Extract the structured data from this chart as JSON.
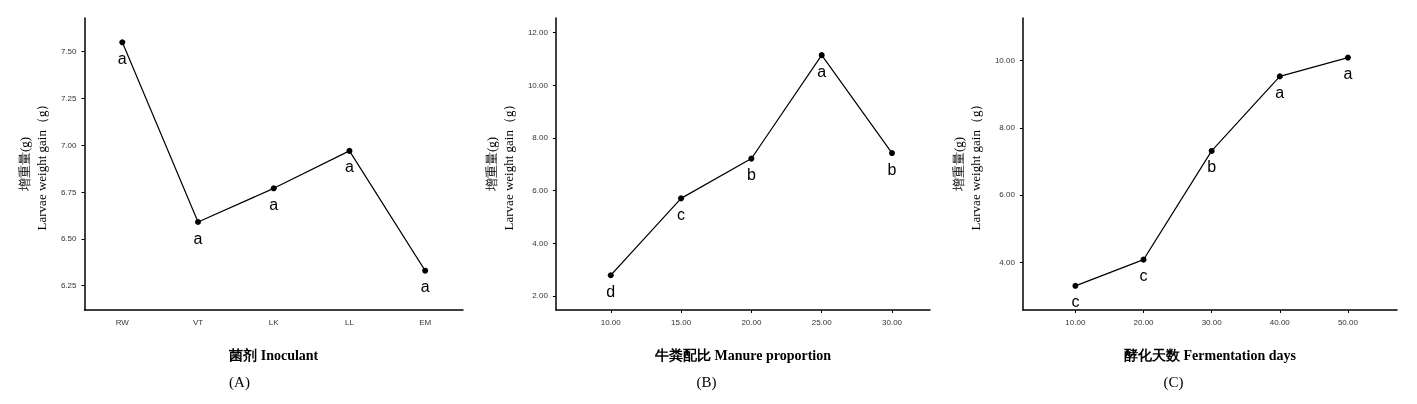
{
  "chart_data": [
    {
      "type": "line",
      "title": "(A)",
      "xlabel": "菌剂 Inoculant",
      "ylabel": "增重量(g)\nLarvae weight gain（g）",
      "categories": [
        "RW",
        "VT",
        "LK",
        "LL",
        "EM"
      ],
      "values": [
        7.55,
        6.59,
        6.77,
        6.97,
        6.33
      ],
      "color": "#000000",
      "ylim": [
        6.12,
        7.68
      ],
      "yticks": [
        {
          "value": 6.25,
          "label": "6.25"
        },
        {
          "value": 6.5,
          "label": "6.50"
        },
        {
          "value": 6.75,
          "label": "6.75"
        },
        {
          "value": 7,
          "label": "7.00"
        },
        {
          "value": 7.25,
          "label": "7.25"
        },
        {
          "value": 7.5,
          "label": "7.50"
        }
      ],
      "grid": false,
      "marker": "circle",
      "line_style": "solid",
      "value_labels": [
        "a",
        "a",
        "a",
        "a",
        "a"
      ]
    },
    {
      "type": "line",
      "title": "(B)",
      "xlabel": "牛粪配比 Manure proportion",
      "ylabel": "增重量(g)\nLarvae weight gain（g）",
      "x": [
        10,
        15,
        20,
        25,
        30
      ],
      "values": [
        2.78,
        5.7,
        7.21,
        11.14,
        7.42
      ],
      "color": "#000000",
      "xlim": [
        6.1,
        32.7
      ],
      "xticks": [
        {
          "value": 10,
          "label": "10.00"
        },
        {
          "value": 15,
          "label": "15.00"
        },
        {
          "value": 20,
          "label": "20.00"
        },
        {
          "value": 25,
          "label": "25.00"
        },
        {
          "value": 30,
          "label": "30.00"
        }
      ],
      "ylim": [
        1.46,
        12.55
      ],
      "yticks": [
        {
          "value": 2,
          "label": "2.00"
        },
        {
          "value": 4,
          "label": "4.00"
        },
        {
          "value": 6,
          "label": "6.00"
        },
        {
          "value": 8,
          "label": "8.00"
        },
        {
          "value": 10,
          "label": "10.00"
        },
        {
          "value": 12,
          "label": "12.00"
        }
      ],
      "grid": false,
      "marker": "circle",
      "line_style": "solid",
      "value_labels": [
        "d",
        "c",
        "b",
        "a",
        "b"
      ]
    },
    {
      "type": "line",
      "title": "(C)",
      "xlabel": "酵化天数 Fermentation days",
      "ylabel": "增重量(g)\nLarvae weight gain（g）",
      "x": [
        10,
        20,
        30,
        40,
        50
      ],
      "values": [
        3.29,
        4.07,
        7.31,
        9.53,
        10.09
      ],
      "color": "#000000",
      "xlim": [
        2.3,
        57.2
      ],
      "xticks": [
        {
          "value": 10,
          "label": "10.00"
        },
        {
          "value": 20,
          "label": "20.00"
        },
        {
          "value": 30,
          "label": "30.00"
        },
        {
          "value": 40,
          "label": "40.00"
        },
        {
          "value": 50,
          "label": "50.00"
        }
      ],
      "ylim": [
        2.57,
        11.27
      ],
      "yticks": [
        {
          "value": 4,
          "label": "4.00"
        },
        {
          "value": 6,
          "label": "6.00"
        },
        {
          "value": 8,
          "label": "8.00"
        },
        {
          "value": 10,
          "label": "10.00"
        }
      ],
      "grid": false,
      "marker": "circle",
      "line_style": "solid",
      "value_labels": [
        "c",
        "c",
        "b",
        "a",
        "a"
      ]
    }
  ]
}
